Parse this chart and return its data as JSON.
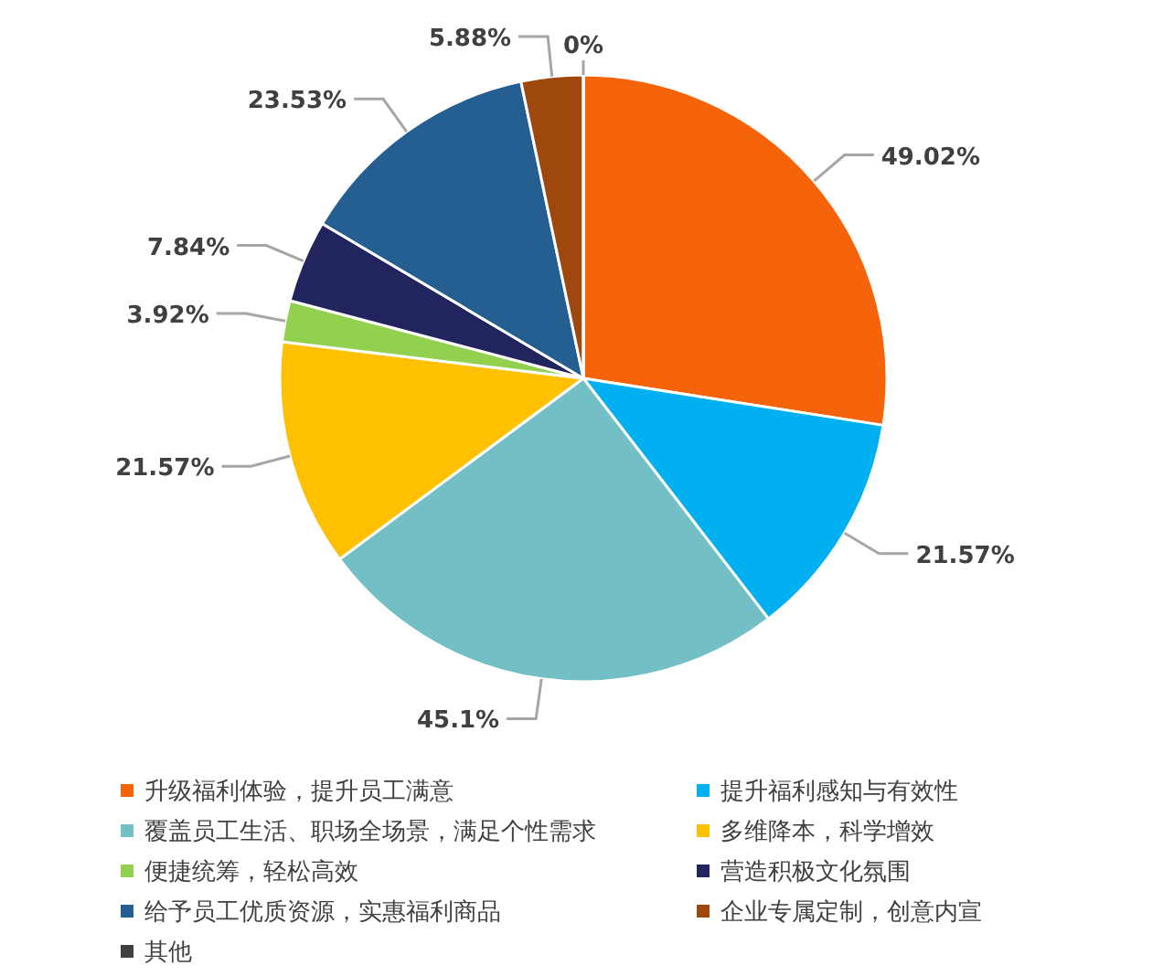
{
  "chart_data": {
    "type": "pie",
    "categories": [
      "升级福利体验，提升员工满意",
      "提升福利感知与有效性",
      "覆盖员工生活、职场全场景，满足个性需求",
      "多维降本，科学增效",
      "便捷统筹，轻松高效",
      "营造积极文化氛围",
      "给予员工优质资源，实惠福利商品",
      "企业专属定制，创意内宣",
      "其他"
    ],
    "values": [
      49.02,
      21.57,
      45.1,
      21.57,
      3.92,
      7.84,
      23.53,
      5.88,
      0
    ],
    "colors": [
      "#f5640a",
      "#00b0f0",
      "#72bfc5",
      "#ffc000",
      "#92d050",
      "#22245e",
      "#255e91",
      "#9e480e",
      "#404040"
    ],
    "value_labels": [
      "49.02%",
      "21.57%",
      "45.1%",
      "21.57%",
      "3.92%",
      "7.84%",
      "23.53%",
      "5.88%",
      "0%"
    ],
    "legend": "bottom"
  }
}
